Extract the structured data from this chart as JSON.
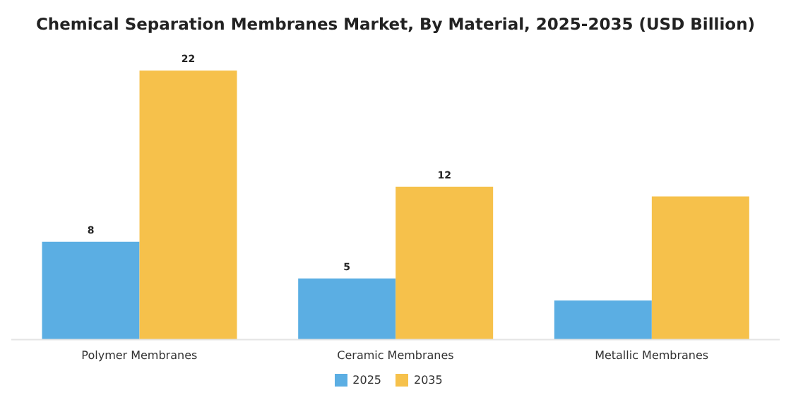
{
  "chart_data": {
    "type": "bar",
    "title": "Chemical Separation Membranes Market, By Material, 2025-2035 (USD Billion)",
    "categories": [
      "Polymer Membranes",
      "Ceramic Membranes",
      "Metallic Membranes"
    ],
    "series": [
      {
        "name": "2025",
        "color": "#5baee3",
        "values": [
          8,
          5,
          3.2
        ],
        "value_labels": [
          "8",
          "5",
          null
        ]
      },
      {
        "name": "2035",
        "color": "#f6c14b",
        "values": [
          22,
          12.5,
          11.7
        ],
        "value_labels": [
          "22",
          "12",
          null
        ]
      }
    ],
    "legend": "bottom",
    "grid": false
  }
}
